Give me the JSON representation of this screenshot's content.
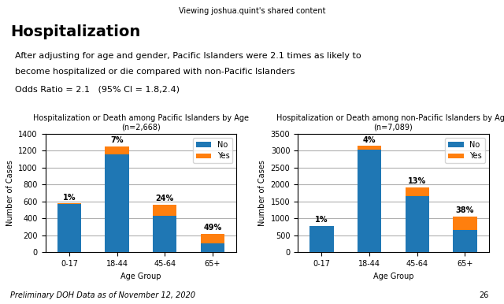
{
  "title": "Hospitalization",
  "annotations": [
    "Viewing joshua.quint's shared content",
    "After adjusting for age and gender, Pacific Islanders were 2.1 times as likely to",
    "become hospitalized or die compared with non-Pacific Islanders",
    "Odds Ratio = 2.1   (95% CI = 1.8,2.4)",
    "Preliminary DOH Data as of November 12, 2020",
    "26"
  ],
  "chart_data": [
    {
      "type": "bar",
      "stacked": true,
      "title": "Hospitalization or Death among Pacific Islanders by Age",
      "subtitle": "(n=2,668)",
      "x_label": "Age Group",
      "y_label": "Number of Cases",
      "categories": [
        "0-17",
        "18-44",
        "45-64",
        "65+"
      ],
      "series": [
        {
          "name": "No",
          "values": [
            570,
            1160,
            430,
            110
          ]
        },
        {
          "name": "Yes",
          "values": [
            6,
            90,
            135,
            105
          ]
        }
      ],
      "ylim": [
        0,
        1400
      ],
      "yticks": [
        0,
        200,
        400,
        600,
        800,
        1000,
        1200,
        1400
      ],
      "grid": true,
      "legend": "upper right",
      "annotations": [
        {
          "x": "0-17",
          "text": "1%"
        },
        {
          "x": "18-44",
          "text": "7%"
        },
        {
          "x": "45-64",
          "text": "24%"
        },
        {
          "x": "65+",
          "text": "49%"
        }
      ]
    },
    {
      "type": "bar",
      "stacked": true,
      "title": "Hospitalization or Death among non-Pacific Islanders by Age",
      "subtitle": "(n=7,089)",
      "x_label": "Age Group",
      "y_label": "Number of Cases",
      "categories": [
        "0-17",
        "18-44",
        "45-64",
        "65+"
      ],
      "series": [
        {
          "name": "No",
          "values": [
            770,
            3020,
            1660,
            650
          ]
        },
        {
          "name": "Yes",
          "values": [
            8,
            120,
            250,
            400
          ]
        }
      ],
      "ylim": [
        0,
        3500
      ],
      "yticks": [
        0,
        500,
        1000,
        1500,
        2000,
        2500,
        3000,
        3500
      ],
      "grid": true,
      "legend": "upper right",
      "annotations": [
        {
          "x": "0-17",
          "text": "1%"
        },
        {
          "x": "18-44",
          "text": "4%"
        },
        {
          "x": "45-64",
          "text": "13%"
        },
        {
          "x": "65+",
          "text": "38%"
        }
      ]
    }
  ]
}
